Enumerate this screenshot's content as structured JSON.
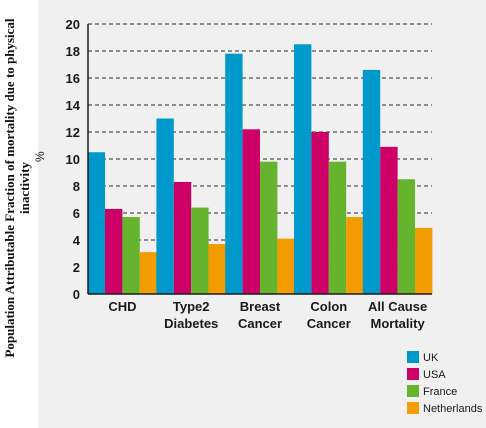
{
  "chart_data": {
    "type": "bar",
    "ylabel": "Population Attributable Fraction of mortality due to physical inactivity",
    "unit": "%",
    "ylim": [
      0,
      20
    ],
    "yticks": [
      "0",
      "2",
      "4",
      "6",
      "8",
      "10",
      "12",
      "14",
      "16",
      "18",
      "20"
    ],
    "grid": "horizontal dashed",
    "legend": "bottom-right",
    "categories": [
      [
        "CHD"
      ],
      [
        "Type2",
        "Diabetes"
      ],
      [
        "Breast",
        "Cancer"
      ],
      [
        "Colon",
        "Cancer"
      ],
      [
        "All Cause",
        "Mortality"
      ]
    ],
    "series": [
      {
        "name": "UK",
        "color": "#0099cc",
        "values": [
          10.5,
          13.0,
          17.8,
          18.5,
          16.6
        ]
      },
      {
        "name": "USA",
        "color": "#cc0066",
        "values": [
          6.3,
          8.3,
          12.2,
          12.0,
          10.9
        ]
      },
      {
        "name": "France",
        "color": "#66b32e",
        "values": [
          5.7,
          6.4,
          9.8,
          9.8,
          8.5
        ]
      },
      {
        "name": "Netherlands",
        "color": "#f39c00",
        "values": [
          3.1,
          3.7,
          4.1,
          5.7,
          4.9
        ]
      }
    ]
  }
}
